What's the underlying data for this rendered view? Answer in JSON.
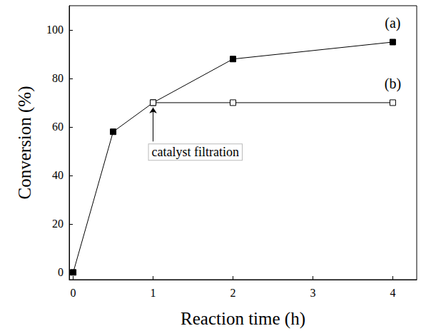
{
  "chart_data": {
    "type": "line",
    "x_label": "Reaction time (h)",
    "y_label": "Conversion (%)",
    "xlim": [
      -0.05,
      4.3
    ],
    "xticks": [
      0,
      1,
      2,
      3,
      4
    ],
    "ylim": [
      -3,
      110
    ],
    "yticks": [
      0,
      20,
      40,
      60,
      80,
      100
    ],
    "grid": false,
    "series": [
      {
        "name": "(a)",
        "color": "#000000",
        "marker": "filled_square",
        "line_style": "solid",
        "x": [
          0,
          0.5,
          1,
          2,
          4
        ],
        "values": [
          0,
          58,
          70,
          88,
          95
        ]
      },
      {
        "name": "(b)",
        "color": "#000000",
        "marker": "open_square",
        "line_style": "solid",
        "x": [
          1,
          2,
          4
        ],
        "values": [
          70,
          70,
          70
        ]
      }
    ],
    "annotations": [
      {
        "text": "catalyst filtration",
        "x": 1,
        "y": 70
      }
    ]
  }
}
